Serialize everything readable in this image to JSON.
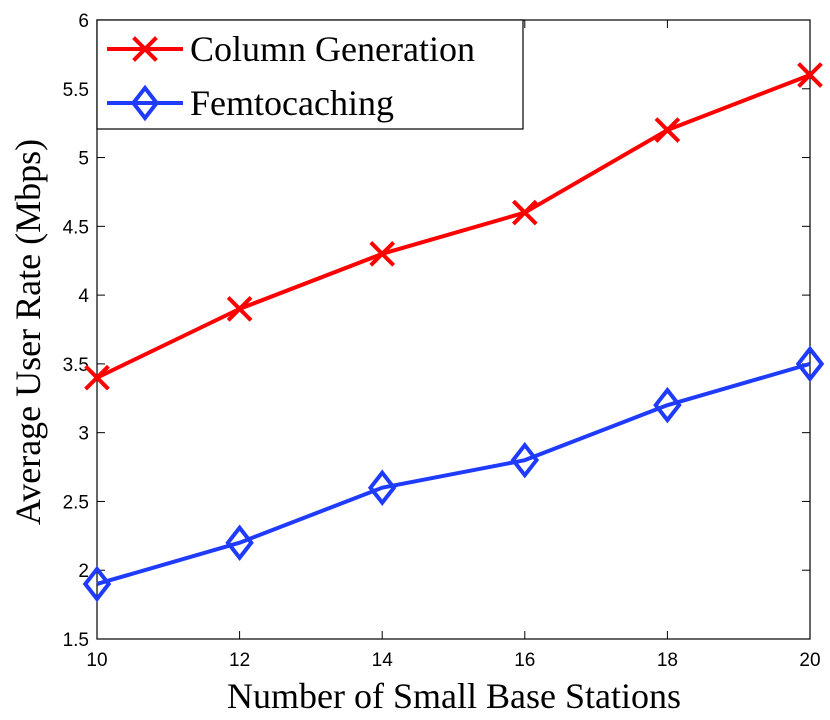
{
  "chart_data": {
    "type": "line",
    "title": "",
    "xlabel": "Number of Small Base Stations",
    "ylabel": "Average User Rate (Mbps)",
    "x": [
      10,
      12,
      14,
      16,
      18,
      20
    ],
    "xlim": [
      10,
      20
    ],
    "ylim": [
      1.5,
      6
    ],
    "xticks": [
      "10",
      "12",
      "14",
      "16",
      "18",
      "20"
    ],
    "yticks": [
      "1.5",
      "2",
      "2.5",
      "3",
      "3.5",
      "4",
      "4.5",
      "5",
      "5.5",
      "6"
    ],
    "grid": false,
    "legend_position": "top-left",
    "series": [
      {
        "name": "Column Generation",
        "values": [
          3.4,
          3.9,
          4.3,
          4.6,
          5.2,
          5.6
        ],
        "color": "#ff0000",
        "marker": "x"
      },
      {
        "name": "Femtocaching",
        "values": [
          1.9,
          2.2,
          2.6,
          2.8,
          3.2,
          3.5
        ],
        "color": "#1f3bff",
        "marker": "diamond"
      }
    ]
  }
}
